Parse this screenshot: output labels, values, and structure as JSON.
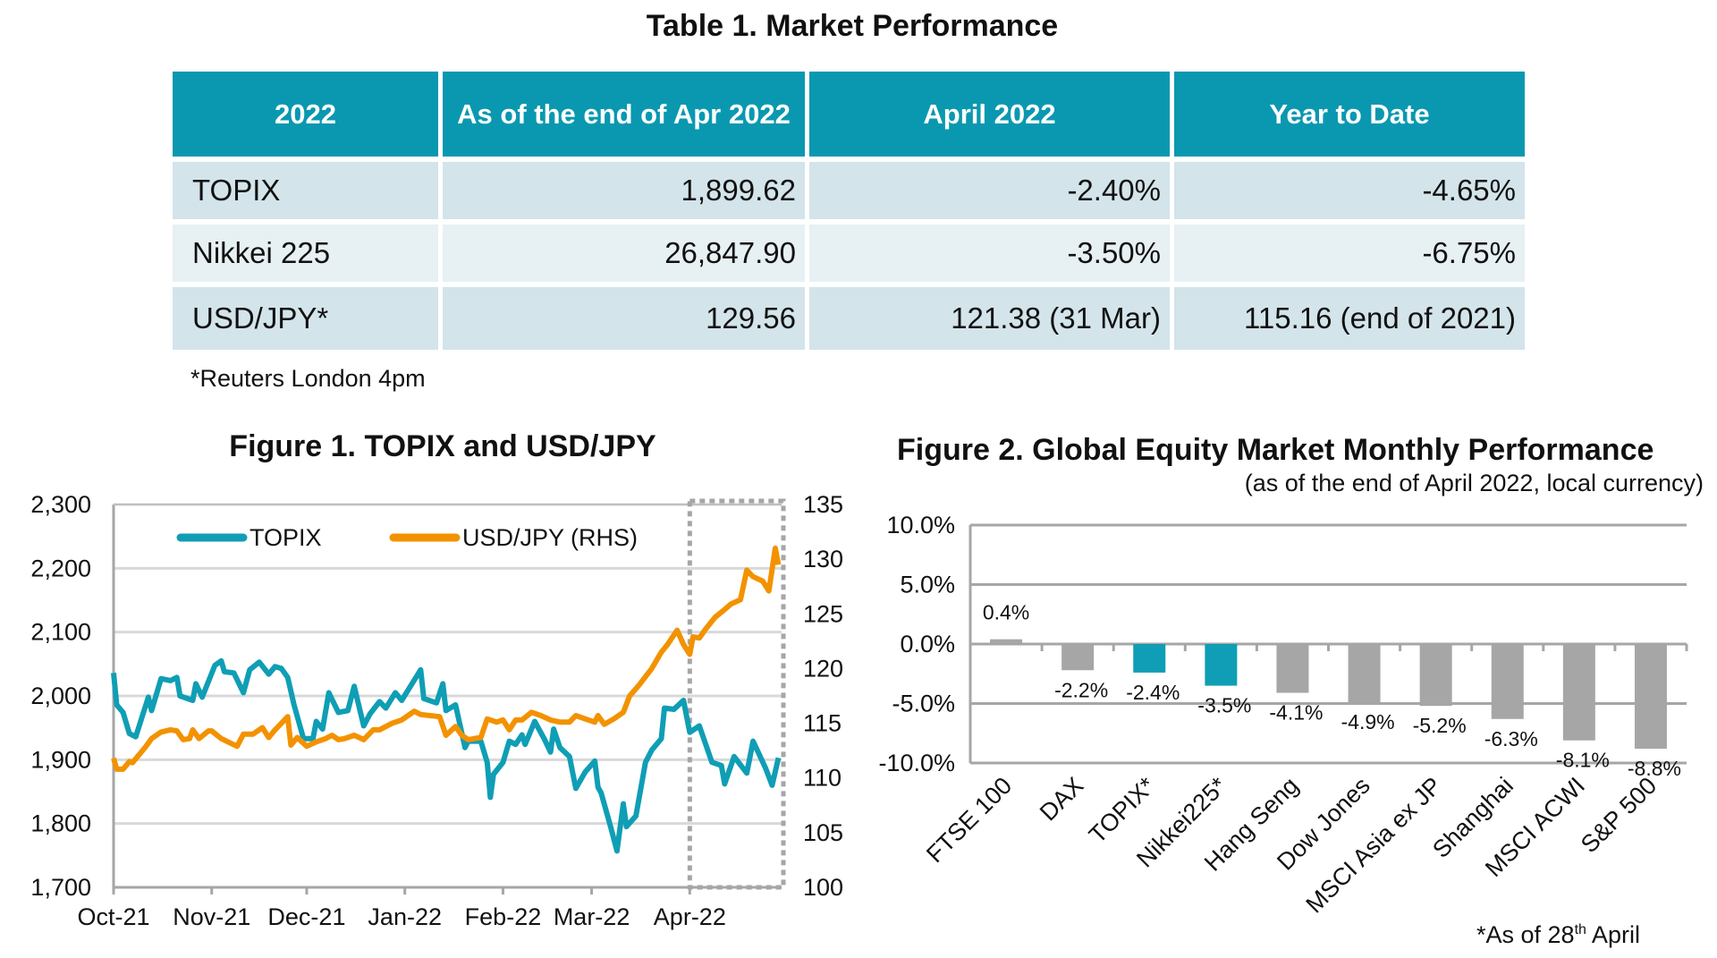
{
  "table": {
    "title": "Table 1. Market Performance",
    "headers": [
      "2022",
      "As of the end of Apr 2022",
      "April 2022",
      "Year to Date"
    ],
    "rows": [
      [
        "TOPIX",
        "1,899.62",
        "-2.40%",
        "-4.65%"
      ],
      [
        "Nikkei 225",
        "26,847.90",
        "-3.50%",
        "-6.75%"
      ],
      [
        "USD/JPY*",
        "129.56",
        "121.38 (31 Mar)",
        "115.16 (end of 2021)"
      ]
    ],
    "footnote": "*Reuters London 4pm",
    "header_color": "#0a98b0"
  },
  "chart_data": [
    {
      "type": "line",
      "title": "Figure 1. TOPIX and USD/JPY",
      "x_ticks": [
        "2021-10-01",
        "2021-11-01",
        "2021-12-01",
        "2022-01-01",
        "2022-02-01",
        "2022-03-01",
        "2022-04-01"
      ],
      "x_tick_labels": [
        "Oct-21",
        "Nov-21",
        "Dec-21",
        "Jan-22",
        "Feb-22",
        "Mar-22",
        "Apr-22"
      ],
      "xlim": [
        "2021-10-01",
        "2022-04-30"
      ],
      "y_left": {
        "lim": [
          1700,
          2300
        ],
        "ticks": [
          "1,700",
          "1,800",
          "1,900",
          "2,000",
          "2,100",
          "2,200",
          "2,300"
        ]
      },
      "y_right": {
        "lim": [
          100,
          135
        ],
        "ticks": [
          "100",
          "105",
          "110",
          "115",
          "120",
          "125",
          "130",
          "135"
        ]
      },
      "grid": true,
      "legend": "top",
      "highlight_box": [
        "2022-04-01",
        "2022-04-30"
      ],
      "series": [
        {
          "name": "TOPIX",
          "axis": "left",
          "color": "#0f9eb5",
          "points": [
            [
              "2021-10-01",
              2036
            ],
            [
              "2021-10-02",
              1986
            ],
            [
              "2021-10-04",
              1974
            ],
            [
              "2021-10-06",
              1941
            ],
            [
              "2021-10-08",
              1936
            ],
            [
              "2021-10-12",
              1998
            ],
            [
              "2021-10-13",
              1977
            ],
            [
              "2021-10-16",
              2027
            ],
            [
              "2021-10-19",
              2024
            ],
            [
              "2021-10-21",
              2029
            ],
            [
              "2021-10-22",
              2000
            ],
            [
              "2021-10-26",
              1993
            ],
            [
              "2021-10-27",
              2019
            ],
            [
              "2021-10-29",
              1998
            ],
            [
              "2021-11-02",
              2048
            ],
            [
              "2021-11-04",
              2055
            ],
            [
              "2021-11-05",
              2038
            ],
            [
              "2021-11-08",
              2036
            ],
            [
              "2021-11-11",
              2005
            ],
            [
              "2021-11-13",
              2041
            ],
            [
              "2021-11-16",
              2053
            ],
            [
              "2021-11-19",
              2034
            ],
            [
              "2021-11-21",
              2046
            ],
            [
              "2021-11-23",
              2043
            ],
            [
              "2021-11-25",
              2029
            ],
            [
              "2021-11-27",
              1986
            ],
            [
              "2021-11-30",
              1933
            ],
            [
              "2021-12-03",
              1933
            ],
            [
              "2021-12-04",
              1960
            ],
            [
              "2021-12-06",
              1948
            ],
            [
              "2021-12-08",
              2005
            ],
            [
              "2021-12-11",
              1974
            ],
            [
              "2021-12-14",
              1977
            ],
            [
              "2021-12-16",
              2015
            ],
            [
              "2021-12-19",
              1953
            ],
            [
              "2021-12-21",
              1972
            ],
            [
              "2021-12-24",
              1991
            ],
            [
              "2021-12-26",
              1981
            ],
            [
              "2021-12-29",
              2005
            ],
            [
              "2021-12-31",
              1993
            ],
            [
              "2022-01-06",
              2041
            ],
            [
              "2022-01-07",
              1996
            ],
            [
              "2022-01-11",
              1989
            ],
            [
              "2022-01-13",
              2019
            ],
            [
              "2022-01-14",
              1977
            ],
            [
              "2022-01-17",
              1986
            ],
            [
              "2022-01-20",
              1919
            ],
            [
              "2022-01-21",
              1929
            ],
            [
              "2022-01-25",
              1929
            ],
            [
              "2022-01-27",
              1896
            ],
            [
              "2022-01-28",
              1841
            ],
            [
              "2022-01-29",
              1877
            ],
            [
              "2022-02-01",
              1896
            ],
            [
              "2022-02-03",
              1929
            ],
            [
              "2022-02-05",
              1924
            ],
            [
              "2022-02-07",
              1939
            ],
            [
              "2022-02-08",
              1924
            ],
            [
              "2022-02-11",
              1960
            ],
            [
              "2022-02-14",
              1933
            ],
            [
              "2022-02-16",
              1912
            ],
            [
              "2022-02-17",
              1948
            ],
            [
              "2022-02-19",
              1919
            ],
            [
              "2022-02-22",
              1905
            ],
            [
              "2022-02-24",
              1855
            ],
            [
              "2022-02-27",
              1881
            ],
            [
              "2022-03-02",
              1898
            ],
            [
              "2022-03-03",
              1857
            ],
            [
              "2022-03-04",
              1848
            ],
            [
              "2022-03-07",
              1795
            ],
            [
              "2022-03-09",
              1757
            ],
            [
              "2022-03-11",
              1831
            ],
            [
              "2022-03-12",
              1795
            ],
            [
              "2022-03-15",
              1812
            ],
            [
              "2022-03-18",
              1896
            ],
            [
              "2022-03-20",
              1915
            ],
            [
              "2022-03-23",
              1933
            ],
            [
              "2022-03-24",
              1981
            ],
            [
              "2022-03-27",
              1979
            ],
            [
              "2022-03-30",
              1993
            ],
            [
              "2022-04-01",
              1943
            ],
            [
              "2022-04-04",
              1953
            ],
            [
              "2022-04-08",
              1896
            ],
            [
              "2022-04-11",
              1891
            ],
            [
              "2022-04-12",
              1862
            ],
            [
              "2022-04-15",
              1905
            ],
            [
              "2022-04-19",
              1879
            ],
            [
              "2022-04-21",
              1929
            ],
            [
              "2022-04-25",
              1886
            ],
            [
              "2022-04-27",
              1860
            ],
            [
              "2022-04-29",
              1903
            ]
          ]
        },
        {
          "name": "USD/JPY (RHS)",
          "axis": "right",
          "color": "#f39200",
          "points": [
            [
              "2021-10-01",
              111.8
            ],
            [
              "2021-10-02",
              110.8
            ],
            [
              "2021-10-04",
              110.8
            ],
            [
              "2021-10-06",
              111.5
            ],
            [
              "2021-10-07",
              111.4
            ],
            [
              "2021-10-11",
              112.8
            ],
            [
              "2021-10-13",
              113.6
            ],
            [
              "2021-10-16",
              114.2
            ],
            [
              "2021-10-19",
              114.4
            ],
            [
              "2021-10-21",
              114.3
            ],
            [
              "2021-10-23",
              113.5
            ],
            [
              "2021-10-25",
              113.6
            ],
            [
              "2021-10-26",
              114.4
            ],
            [
              "2021-10-28",
              113.6
            ],
            [
              "2021-10-31",
              114.3
            ],
            [
              "2021-11-01",
              114.3
            ],
            [
              "2021-11-04",
              113.6
            ],
            [
              "2021-11-09",
              112.9
            ],
            [
              "2021-11-11",
              114.0
            ],
            [
              "2021-11-14",
              114.0
            ],
            [
              "2021-11-17",
              114.6
            ],
            [
              "2021-11-19",
              113.7
            ],
            [
              "2021-11-21",
              114.4
            ],
            [
              "2021-11-25",
              115.6
            ],
            [
              "2021-11-26",
              113.0
            ],
            [
              "2021-11-28",
              113.7
            ],
            [
              "2021-12-01",
              112.9
            ],
            [
              "2021-12-04",
              113.3
            ],
            [
              "2021-12-07",
              113.6
            ],
            [
              "2021-12-09",
              113.9
            ],
            [
              "2021-12-11",
              113.5
            ],
            [
              "2021-12-13",
              113.6
            ],
            [
              "2021-12-16",
              113.9
            ],
            [
              "2021-12-19",
              113.5
            ],
            [
              "2021-12-22",
              114.4
            ],
            [
              "2021-12-24",
              114.4
            ],
            [
              "2021-12-28",
              115.0
            ],
            [
              "2021-12-31",
              115.3
            ],
            [
              "2022-01-04",
              116.1
            ],
            [
              "2022-01-06",
              115.8
            ],
            [
              "2022-01-09",
              115.7
            ],
            [
              "2022-01-12",
              115.6
            ],
            [
              "2022-01-14",
              113.9
            ],
            [
              "2022-01-17",
              114.7
            ],
            [
              "2022-01-19",
              113.9
            ],
            [
              "2022-01-21",
              113.5
            ],
            [
              "2022-01-25",
              113.7
            ],
            [
              "2022-01-27",
              115.4
            ],
            [
              "2022-01-30",
              115.1
            ],
            [
              "2022-02-01",
              115.3
            ],
            [
              "2022-02-03",
              114.4
            ],
            [
              "2022-02-05",
              115.3
            ],
            [
              "2022-02-07",
              115.3
            ],
            [
              "2022-02-10",
              116.0
            ],
            [
              "2022-02-13",
              115.7
            ],
            [
              "2022-02-16",
              115.3
            ],
            [
              "2022-02-19",
              115.1
            ],
            [
              "2022-02-22",
              115.1
            ],
            [
              "2022-02-24",
              115.7
            ],
            [
              "2022-02-27",
              115.4
            ],
            [
              "2022-03-02",
              115.1
            ],
            [
              "2022-03-03",
              115.7
            ],
            [
              "2022-03-05",
              114.9
            ],
            [
              "2022-03-08",
              115.4
            ],
            [
              "2022-03-11",
              116.0
            ],
            [
              "2022-03-13",
              117.5
            ],
            [
              "2022-03-16",
              118.5
            ],
            [
              "2022-03-20",
              120.0
            ],
            [
              "2022-03-23",
              121.5
            ],
            [
              "2022-03-25",
              122.2
            ],
            [
              "2022-03-28",
              123.5
            ],
            [
              "2022-03-30",
              122.2
            ],
            [
              "2022-04-01",
              121.3
            ],
            [
              "2022-04-02",
              122.9
            ],
            [
              "2022-04-04",
              122.8
            ],
            [
              "2022-04-06",
              123.6
            ],
            [
              "2022-04-09",
              124.7
            ],
            [
              "2022-04-12",
              125.4
            ],
            [
              "2022-04-14",
              125.9
            ],
            [
              "2022-04-17",
              126.3
            ],
            [
              "2022-04-19",
              129.0
            ],
            [
              "2022-04-21",
              128.4
            ],
            [
              "2022-04-24",
              128.0
            ],
            [
              "2022-04-26",
              127.1
            ],
            [
              "2022-04-28",
              131.0
            ],
            [
              "2022-04-29",
              129.5
            ]
          ]
        }
      ]
    },
    {
      "type": "bar",
      "title": "Figure 2. Global Equity Market Monthly Performance",
      "subtitle": "(as of the end of April 2022, local currency)",
      "categories": [
        "FTSE 100",
        "DAX",
        "TOPIX*",
        "Nikkei225*",
        "Hang Seng",
        "Dow Jones",
        "MSCI Asia ex JP",
        "Shanghai",
        "MSCI ACWI",
        "S&P 500"
      ],
      "values": [
        0.4,
        -2.2,
        -2.4,
        -3.5,
        -4.1,
        -4.9,
        -5.2,
        -6.3,
        -8.1,
        -8.8
      ],
      "data_labels": [
        "0.4%",
        "-2.2%",
        "-2.4%",
        "-3.5%",
        "-4.1%",
        "-4.9%",
        "-5.2%",
        "-6.3%",
        "-8.1%",
        "-8.8%"
      ],
      "bar_colors": [
        "#a6a6a6",
        "#a6a6a6",
        "#0f9eb5",
        "#0f9eb5",
        "#a6a6a6",
        "#a6a6a6",
        "#a6a6a6",
        "#a6a6a6",
        "#a6a6a6",
        "#a6a6a6"
      ],
      "ylim": [
        -10,
        10
      ],
      "y_ticks": [
        "-10.0%",
        "-5.0%",
        "0.0%",
        "5.0%",
        "10.0%"
      ],
      "grid": true,
      "footnote_main": "*As of 28",
      "footnote_sup": "th",
      "footnote_end": " April"
    }
  ]
}
